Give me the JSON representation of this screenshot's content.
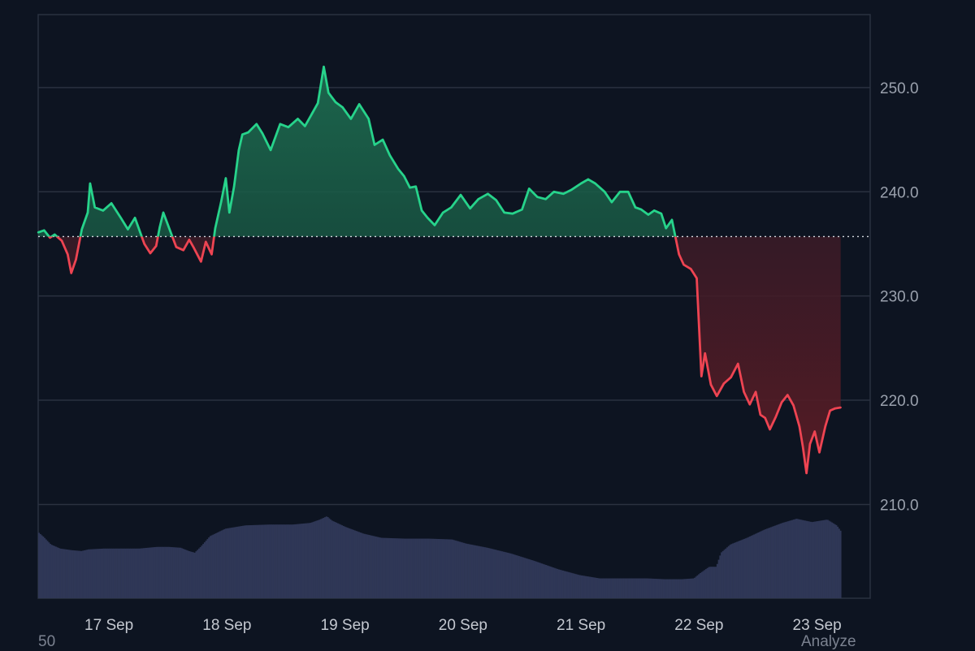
{
  "chart_data": {
    "type": "area",
    "baseline": 235.7,
    "ylim": [
      201,
      257
    ],
    "y_ticks": [
      "210.0",
      "220.0",
      "230.0",
      "240.0",
      "250.0"
    ],
    "y_tick_values": [
      210,
      220,
      230,
      240,
      250
    ],
    "x_ticks": [
      "17 Sep",
      "18 Sep",
      "19 Sep",
      "20 Sep",
      "21 Sep",
      "22 Sep",
      "23 Sep"
    ],
    "x_tick_values": [
      0.6,
      1.6,
      2.6,
      3.6,
      4.6,
      5.6,
      6.6
    ],
    "xlim": [
      0,
      7.05
    ],
    "colors": {
      "up": "#27d38b",
      "down": "#ee4452",
      "up_fill_top": "#1d6a4f",
      "down_fill_bottom": "#5a1c25",
      "volume": "#2f3756",
      "grid": "#2a3140",
      "baseline": "#d5d9e0",
      "background": "#0d1421"
    },
    "series": [
      {
        "values": [
          [
            0.0,
            236.1
          ],
          [
            0.05,
            236.3
          ],
          [
            0.1,
            235.6
          ],
          [
            0.14,
            235.9
          ],
          [
            0.2,
            235.3
          ],
          [
            0.25,
            234.0
          ],
          [
            0.28,
            232.2
          ],
          [
            0.32,
            233.5
          ],
          [
            0.37,
            236.4
          ],
          [
            0.42,
            238.0
          ],
          [
            0.44,
            240.8
          ],
          [
            0.48,
            238.5
          ],
          [
            0.55,
            238.2
          ],
          [
            0.62,
            238.9
          ],
          [
            0.7,
            237.5
          ],
          [
            0.76,
            236.4
          ],
          [
            0.82,
            237.5
          ],
          [
            0.9,
            235.0
          ],
          [
            0.95,
            234.1
          ],
          [
            1.0,
            234.8
          ],
          [
            1.03,
            236.6
          ],
          [
            1.06,
            238.0
          ],
          [
            1.12,
            236.2
          ],
          [
            1.17,
            234.7
          ],
          [
            1.23,
            234.4
          ],
          [
            1.28,
            235.4
          ],
          [
            1.32,
            234.6
          ],
          [
            1.38,
            233.3
          ],
          [
            1.42,
            235.2
          ],
          [
            1.47,
            234.0
          ],
          [
            1.5,
            236.5
          ],
          [
            1.55,
            239.0
          ],
          [
            1.59,
            241.3
          ],
          [
            1.62,
            238.0
          ],
          [
            1.66,
            240.5
          ],
          [
            1.7,
            244.0
          ],
          [
            1.73,
            245.5
          ],
          [
            1.78,
            245.7
          ],
          [
            1.85,
            246.5
          ],
          [
            1.9,
            245.6
          ],
          [
            1.97,
            244.0
          ],
          [
            2.05,
            246.5
          ],
          [
            2.12,
            246.2
          ],
          [
            2.2,
            247.0
          ],
          [
            2.26,
            246.3
          ],
          [
            2.32,
            247.5
          ],
          [
            2.37,
            248.5
          ],
          [
            2.42,
            252.0
          ],
          [
            2.46,
            249.5
          ],
          [
            2.52,
            248.6
          ],
          [
            2.58,
            248.1
          ],
          [
            2.65,
            247.0
          ],
          [
            2.72,
            248.4
          ],
          [
            2.8,
            247.0
          ],
          [
            2.85,
            244.5
          ],
          [
            2.92,
            245.0
          ],
          [
            2.98,
            243.5
          ],
          [
            3.05,
            242.2
          ],
          [
            3.1,
            241.5
          ],
          [
            3.15,
            240.4
          ],
          [
            3.2,
            240.5
          ],
          [
            3.25,
            238.2
          ],
          [
            3.3,
            237.5
          ],
          [
            3.36,
            236.8
          ],
          [
            3.43,
            238.0
          ],
          [
            3.5,
            238.5
          ],
          [
            3.58,
            239.7
          ],
          [
            3.66,
            238.4
          ],
          [
            3.73,
            239.3
          ],
          [
            3.81,
            239.8
          ],
          [
            3.88,
            239.2
          ],
          [
            3.95,
            238.0
          ],
          [
            4.02,
            237.9
          ],
          [
            4.1,
            238.3
          ],
          [
            4.16,
            240.3
          ],
          [
            4.23,
            239.5
          ],
          [
            4.3,
            239.3
          ],
          [
            4.37,
            240.0
          ],
          [
            4.45,
            239.8
          ],
          [
            4.52,
            240.2
          ],
          [
            4.6,
            240.8
          ],
          [
            4.66,
            241.2
          ],
          [
            4.72,
            240.8
          ],
          [
            4.8,
            240.0
          ],
          [
            4.86,
            239.0
          ],
          [
            4.93,
            240.0
          ],
          [
            5.0,
            240.0
          ],
          [
            5.06,
            238.5
          ],
          [
            5.11,
            238.3
          ],
          [
            5.17,
            237.8
          ],
          [
            5.22,
            238.2
          ],
          [
            5.28,
            237.9
          ],
          [
            5.32,
            236.5
          ],
          [
            5.37,
            237.3
          ],
          [
            5.43,
            234.0
          ],
          [
            5.47,
            233.0
          ],
          [
            5.53,
            232.6
          ],
          [
            5.58,
            231.7
          ],
          [
            5.62,
            222.3
          ],
          [
            5.65,
            224.5
          ],
          [
            5.7,
            221.5
          ],
          [
            5.75,
            220.4
          ],
          [
            5.81,
            221.6
          ],
          [
            5.87,
            222.2
          ],
          [
            5.93,
            223.5
          ],
          [
            5.98,
            220.8
          ],
          [
            6.03,
            219.6
          ],
          [
            6.08,
            220.8
          ],
          [
            6.12,
            218.6
          ],
          [
            6.16,
            218.3
          ],
          [
            6.2,
            217.2
          ],
          [
            6.25,
            218.4
          ],
          [
            6.3,
            219.8
          ],
          [
            6.35,
            220.5
          ],
          [
            6.4,
            219.5
          ],
          [
            6.45,
            217.5
          ],
          [
            6.48,
            215.5
          ],
          [
            6.51,
            213.0
          ],
          [
            6.54,
            215.8
          ],
          [
            6.58,
            217.0
          ],
          [
            6.62,
            215.0
          ],
          [
            6.67,
            217.5
          ],
          [
            6.71,
            219.0
          ],
          [
            6.75,
            219.2
          ],
          [
            6.8,
            219.3
          ]
        ]
      }
    ],
    "volume": [
      [
        0.0,
        0.79
      ],
      [
        0.04,
        0.74
      ],
      [
        0.1,
        0.65
      ],
      [
        0.18,
        0.6
      ],
      [
        0.28,
        0.58
      ],
      [
        0.36,
        0.57
      ],
      [
        0.42,
        0.59
      ],
      [
        0.55,
        0.6
      ],
      [
        0.7,
        0.6
      ],
      [
        0.85,
        0.6
      ],
      [
        1.0,
        0.62
      ],
      [
        1.1,
        0.62
      ],
      [
        1.2,
        0.61
      ],
      [
        1.27,
        0.57
      ],
      [
        1.32,
        0.55
      ],
      [
        1.37,
        0.62
      ],
      [
        1.45,
        0.75
      ],
      [
        1.58,
        0.84
      ],
      [
        1.75,
        0.88
      ],
      [
        1.95,
        0.89
      ],
      [
        2.15,
        0.89
      ],
      [
        2.3,
        0.91
      ],
      [
        2.38,
        0.95
      ],
      [
        2.44,
        0.99
      ],
      [
        2.48,
        0.94
      ],
      [
        2.6,
        0.86
      ],
      [
        2.75,
        0.78
      ],
      [
        2.9,
        0.73
      ],
      [
        3.1,
        0.72
      ],
      [
        3.3,
        0.72
      ],
      [
        3.5,
        0.71
      ],
      [
        3.62,
        0.66
      ],
      [
        3.8,
        0.61
      ],
      [
        4.0,
        0.54
      ],
      [
        4.2,
        0.45
      ],
      [
        4.4,
        0.35
      ],
      [
        4.58,
        0.28
      ],
      [
        4.75,
        0.24
      ],
      [
        4.95,
        0.24
      ],
      [
        5.15,
        0.24
      ],
      [
        5.3,
        0.23
      ],
      [
        5.45,
        0.23
      ],
      [
        5.55,
        0.24
      ],
      [
        5.6,
        0.3
      ],
      [
        5.68,
        0.38
      ],
      [
        5.74,
        0.38
      ],
      [
        5.78,
        0.55
      ],
      [
        5.86,
        0.65
      ],
      [
        6.0,
        0.73
      ],
      [
        6.15,
        0.83
      ],
      [
        6.3,
        0.91
      ],
      [
        6.42,
        0.96
      ],
      [
        6.55,
        0.92
      ],
      [
        6.68,
        0.95
      ],
      [
        6.76,
        0.88
      ],
      [
        6.8,
        0.8
      ]
    ]
  },
  "footer": {
    "left_label": "50",
    "right_label": "Analyze"
  }
}
